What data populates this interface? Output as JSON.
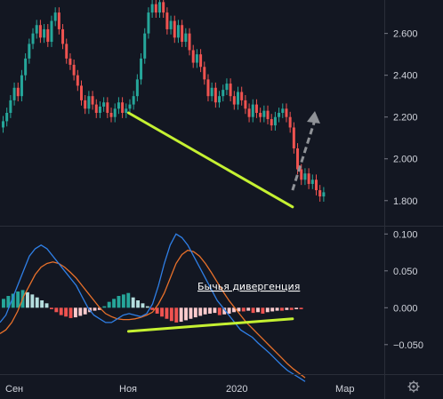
{
  "chart_data": [
    {
      "type": "candlestick",
      "panel": "price",
      "ylim": [
        1.68,
        2.76
      ],
      "y_ticks": [
        "2.600",
        "2.400",
        "2.200",
        "2.000",
        "1.800"
      ],
      "y_tick_values": [
        2.6,
        2.4,
        2.2,
        2.0,
        1.8
      ],
      "colors": {
        "up": "#26a69a",
        "down": "#ef5350",
        "trendline": "#c5f132",
        "arrow": "#8f9297"
      },
      "closes": [
        2.18,
        2.22,
        2.28,
        2.34,
        2.3,
        2.4,
        2.48,
        2.55,
        2.6,
        2.64,
        2.58,
        2.62,
        2.56,
        2.66,
        2.7,
        2.62,
        2.55,
        2.48,
        2.45,
        2.4,
        2.35,
        2.28,
        2.24,
        2.3,
        2.26,
        2.22,
        2.25,
        2.27,
        2.22,
        2.2,
        2.24,
        2.27,
        2.22,
        2.24,
        2.26,
        2.3,
        2.38,
        2.48,
        2.6,
        2.7,
        2.74,
        2.7,
        2.75,
        2.7,
        2.62,
        2.66,
        2.58,
        2.64,
        2.56,
        2.6,
        2.52,
        2.46,
        2.5,
        2.44,
        2.38,
        2.3,
        2.34,
        2.27,
        2.3,
        2.33,
        2.36,
        2.3,
        2.26,
        2.32,
        2.28,
        2.24,
        2.2,
        2.26,
        2.22,
        2.2,
        2.23,
        2.19,
        2.16,
        2.2,
        2.22,
        2.24,
        2.2,
        2.15,
        2.05,
        1.95,
        1.9,
        1.93,
        1.88,
        1.9,
        1.85,
        1.82,
        1.84
      ],
      "trendline": [
        {
          "x": 34,
          "y": 2.22
        },
        {
          "x": 78,
          "y": 1.77
        }
      ],
      "arrow": [
        {
          "x": 78,
          "y": 1.85
        },
        {
          "x": 84,
          "y": 2.22
        }
      ]
    },
    {
      "type": "macd",
      "panel": "indicator",
      "ylim": [
        -0.09,
        0.11
      ],
      "y_ticks": [
        "0.100",
        "0.050",
        "0.000",
        "−0.050"
      ],
      "y_tick_values": [
        0.1,
        0.05,
        0.0,
        -0.05
      ],
      "colors": {
        "macd": "#2f7fe6",
        "signal": "#e8702a",
        "hist_pos": "#b5dede",
        "hist_pos_dark": "#26a69a",
        "hist_neg": "#fccbcd",
        "hist_neg_dark": "#ef5350",
        "trendline": "#c5f132"
      },
      "macd": [
        -0.02,
        -0.01,
        0.01,
        0.03,
        0.05,
        0.07,
        0.08,
        0.085,
        0.08,
        0.07,
        0.06,
        0.05,
        0.04,
        0.03,
        0.015,
        0.0,
        -0.01,
        -0.015,
        -0.02,
        -0.02,
        -0.015,
        -0.01,
        -0.008,
        -0.01,
        -0.012,
        -0.008,
        0.005,
        0.03,
        0.06,
        0.085,
        0.1,
        0.095,
        0.085,
        0.07,
        0.055,
        0.04,
        0.025,
        0.01,
        0.0,
        -0.01,
        -0.02,
        -0.03,
        -0.035,
        -0.04,
        -0.048,
        -0.055,
        -0.062,
        -0.07,
        -0.078,
        -0.085,
        -0.09,
        -0.095,
        -0.1
      ],
      "signal": [
        -0.035,
        -0.03,
        -0.02,
        -0.005,
        0.015,
        0.03,
        0.045,
        0.055,
        0.06,
        0.062,
        0.06,
        0.055,
        0.048,
        0.04,
        0.03,
        0.02,
        0.01,
        0.0,
        -0.008,
        -0.012,
        -0.015,
        -0.016,
        -0.016,
        -0.015,
        -0.013,
        -0.01,
        -0.006,
        0.005,
        0.02,
        0.04,
        0.06,
        0.072,
        0.078,
        0.076,
        0.07,
        0.06,
        0.048,
        0.035,
        0.022,
        0.01,
        0.0,
        -0.01,
        -0.02,
        -0.028,
        -0.036,
        -0.044,
        -0.052,
        -0.06,
        -0.068,
        -0.076,
        -0.083,
        -0.089,
        -0.095
      ],
      "histogram": [
        0.012,
        0.016,
        0.019,
        0.022,
        0.024,
        0.021,
        0.018,
        0.014,
        0.01,
        0.006,
        -0.002,
        -0.006,
        -0.01,
        -0.012,
        -0.014,
        -0.013,
        -0.011,
        -0.009,
        -0.006,
        -0.004,
        -0.003,
        0.002,
        0.008,
        0.012,
        0.016,
        0.018,
        0.02,
        0.014,
        0.01,
        0.006,
        0.002,
        -0.003,
        -0.008,
        -0.012,
        -0.015,
        -0.018,
        -0.02,
        -0.019,
        -0.017,
        -0.015,
        -0.013,
        -0.011,
        -0.009,
        -0.008,
        -0.007,
        -0.01,
        -0.009,
        -0.008,
        -0.006,
        -0.005,
        -0.005,
        -0.004,
        -0.007,
        -0.006,
        -0.008,
        -0.006,
        -0.005,
        -0.004,
        -0.004,
        -0.003,
        -0.003,
        -0.002,
        -0.002
      ],
      "trendline": [
        {
          "x": 34,
          "y": -0.032
        },
        {
          "x": 78,
          "y": -0.015
        }
      ],
      "annotation": "Бычья дивергенция"
    }
  ],
  "time_axis": {
    "labels": [
      "Сен",
      "Ноя",
      "2020",
      "Мар"
    ]
  },
  "toolbar": {
    "settings_icon": "gear-icon"
  }
}
